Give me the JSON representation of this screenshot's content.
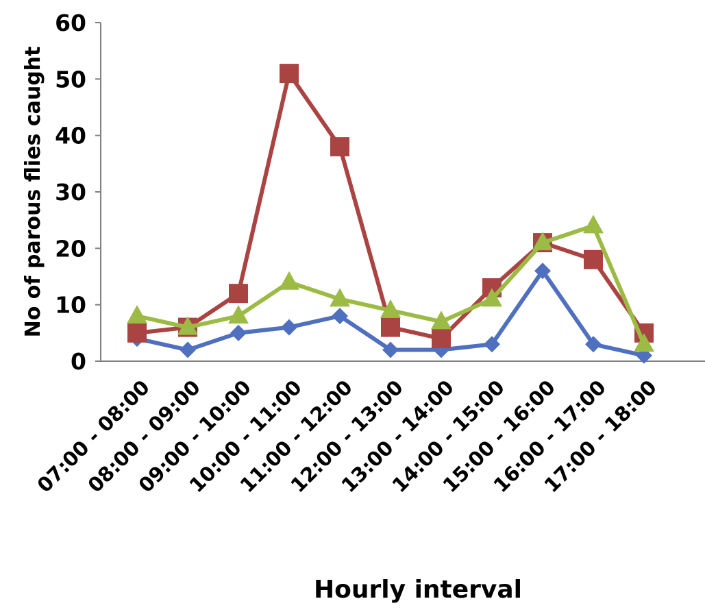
{
  "chart_data": {
    "type": "line",
    "title": "",
    "xlabel": "Hourly interval",
    "ylabel": "No of parous flies caught",
    "ylim": [
      0,
      60
    ],
    "yticks": [
      "0",
      "10",
      "20",
      "30",
      "40",
      "50",
      "60"
    ],
    "grid": false,
    "legend": "none",
    "categories": [
      "07:00 - 08:00",
      "08:00 - 09:00",
      "09:00 - 10:00",
      "10:00 - 11:00",
      "11:00 - 12:00",
      "12:00 - 13:00",
      "13:00 - 14:00",
      "14:00 - 15:00",
      "15:00 - 16:00",
      "16:00 - 17:00",
      "17:00 - 18:00"
    ],
    "series": [
      {
        "color": "#4f6fbf",
        "marker": "diamond",
        "values": [
          4,
          2,
          5,
          6,
          8,
          2,
          2,
          3,
          16,
          3,
          1
        ]
      },
      {
        "color": "#a94442",
        "marker": "square",
        "values": [
          5,
          6,
          12,
          51,
          38,
          6,
          4,
          13,
          21,
          18,
          5
        ]
      },
      {
        "color": "#9bbb45",
        "marker": "triangle",
        "values": [
          8,
          6,
          8,
          14,
          11,
          9,
          7,
          11,
          21,
          24,
          3
        ]
      }
    ]
  }
}
